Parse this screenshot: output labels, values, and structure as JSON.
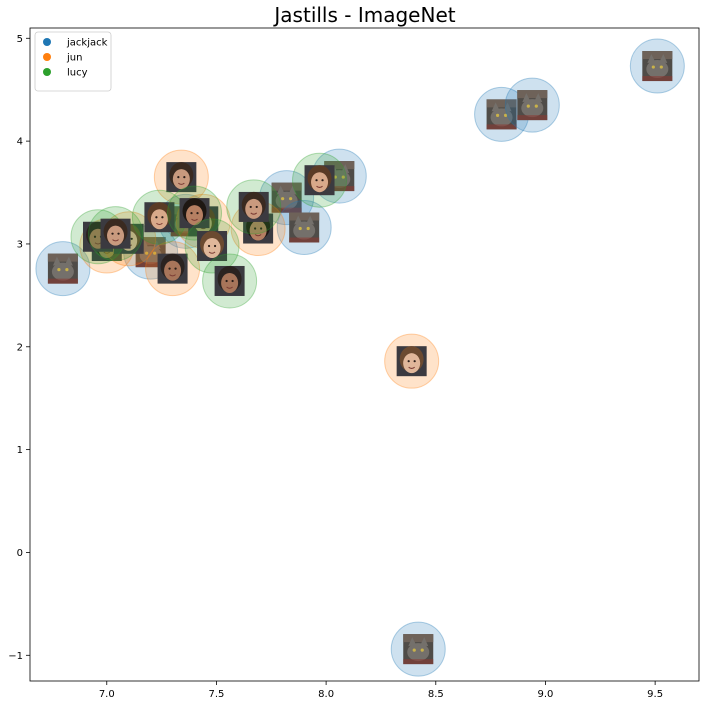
{
  "chart_data": {
    "type": "scatter",
    "title": "Jastills - ImageNet",
    "xlabel": "",
    "ylabel": "",
    "xlim": [
      6.65,
      9.7
    ],
    "ylim": [
      -1.25,
      5.1
    ],
    "xticks": [
      7.0,
      7.5,
      8.0,
      8.5,
      9.0,
      9.5
    ],
    "xtick_labels": [
      "7.0",
      "7.5",
      "8.0",
      "8.5",
      "9.0",
      "9.5"
    ],
    "yticks": [
      -1,
      0,
      1,
      2,
      3,
      4,
      5
    ],
    "ytick_labels": [
      "−1",
      "0",
      "1",
      "2",
      "3",
      "4",
      "5"
    ],
    "grid": false,
    "legend_position": "top-left",
    "marker": "circle-with-thumbnail",
    "series": [
      {
        "name": "jackjack",
        "color": "#1f77b4",
        "thumbnail": "cat",
        "points": [
          {
            "x": 6.8,
            "y": 2.76
          },
          {
            "x": 7.2,
            "y": 2.92
          },
          {
            "x": 7.36,
            "y": 3.22
          },
          {
            "x": 7.82,
            "y": 3.45
          },
          {
            "x": 7.9,
            "y": 3.16
          },
          {
            "x": 8.06,
            "y": 3.66
          },
          {
            "x": 8.8,
            "y": 4.26
          },
          {
            "x": 8.94,
            "y": 4.35
          },
          {
            "x": 9.51,
            "y": 4.73
          },
          {
            "x": 8.42,
            "y": -0.94
          }
        ]
      },
      {
        "name": "jun",
        "color": "#ff7f0e",
        "thumbnail": "face",
        "points": [
          {
            "x": 7.0,
            "y": 2.98
          },
          {
            "x": 7.1,
            "y": 3.05
          },
          {
            "x": 7.3,
            "y": 2.76
          },
          {
            "x": 7.34,
            "y": 3.65
          },
          {
            "x": 7.44,
            "y": 3.22
          },
          {
            "x": 7.69,
            "y": 3.15
          },
          {
            "x": 8.39,
            "y": 1.86
          }
        ]
      },
      {
        "name": "lucy",
        "color": "#2ca02c",
        "thumbnail": "face",
        "points": [
          {
            "x": 6.96,
            "y": 3.07
          },
          {
            "x": 7.04,
            "y": 3.1
          },
          {
            "x": 7.24,
            "y": 3.26
          },
          {
            "x": 7.4,
            "y": 3.3
          },
          {
            "x": 7.48,
            "y": 2.98
          },
          {
            "x": 7.56,
            "y": 2.64
          },
          {
            "x": 7.67,
            "y": 3.36
          },
          {
            "x": 7.97,
            "y": 3.62
          }
        ]
      }
    ]
  }
}
